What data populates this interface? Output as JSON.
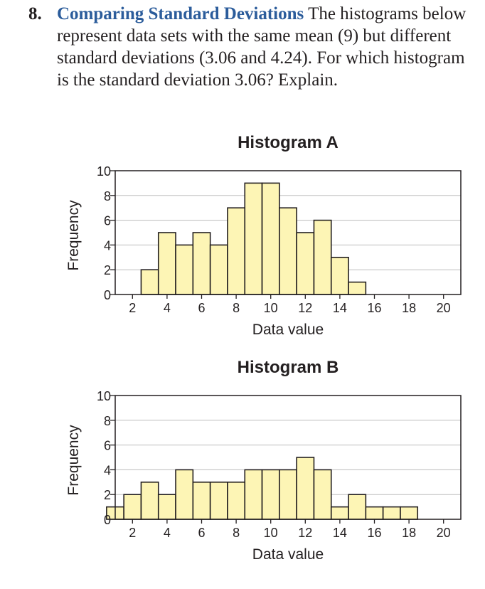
{
  "problem": {
    "number": "8.",
    "title": "Comparing Standard Deviations",
    "text": " The histograms below represent data sets with the same mean (9) but different standard deviations (3.06 and 4.24). For which histogram is the standard deviation 3.06? Explain."
  },
  "chart_data": [
    {
      "type": "bar",
      "title": "Histogram A",
      "xlabel": "Data value",
      "ylabel": "Frequency",
      "bin_width": 1,
      "xlim": [
        1,
        21
      ],
      "ylim": [
        0,
        10
      ],
      "x_ticks": [
        2,
        4,
        6,
        8,
        10,
        12,
        14,
        16,
        18,
        20
      ],
      "y_ticks": [
        0,
        2,
        4,
        6,
        8,
        10
      ],
      "grid": true,
      "bar_color": "#fdf5b5",
      "categories": [
        1,
        2,
        3,
        4,
        5,
        6,
        7,
        8,
        9,
        10,
        11,
        12,
        13,
        14,
        15,
        16,
        17,
        18,
        19,
        20
      ],
      "values": [
        0,
        0,
        2,
        5,
        4,
        5,
        4,
        7,
        9,
        9,
        7,
        5,
        6,
        3,
        1,
        0,
        0,
        0,
        0,
        0
      ]
    },
    {
      "type": "bar",
      "title": "Histogram B",
      "xlabel": "Data value",
      "ylabel": "Frequency",
      "bin_width": 1,
      "xlim": [
        1,
        21
      ],
      "ylim": [
        0,
        10
      ],
      "x_ticks": [
        2,
        4,
        6,
        8,
        10,
        12,
        14,
        16,
        18,
        20
      ],
      "y_ticks": [
        0,
        2,
        4,
        6,
        8,
        10
      ],
      "grid": true,
      "bar_color": "#fdf5b5",
      "categories": [
        1,
        2,
        3,
        4,
        5,
        6,
        7,
        8,
        9,
        10,
        11,
        12,
        13,
        14,
        15,
        16,
        17,
        18,
        19,
        20
      ],
      "values": [
        1,
        2,
        3,
        2,
        4,
        3,
        3,
        3,
        4,
        4,
        4,
        5,
        4,
        1,
        2,
        1,
        1,
        1,
        0,
        0
      ]
    }
  ]
}
